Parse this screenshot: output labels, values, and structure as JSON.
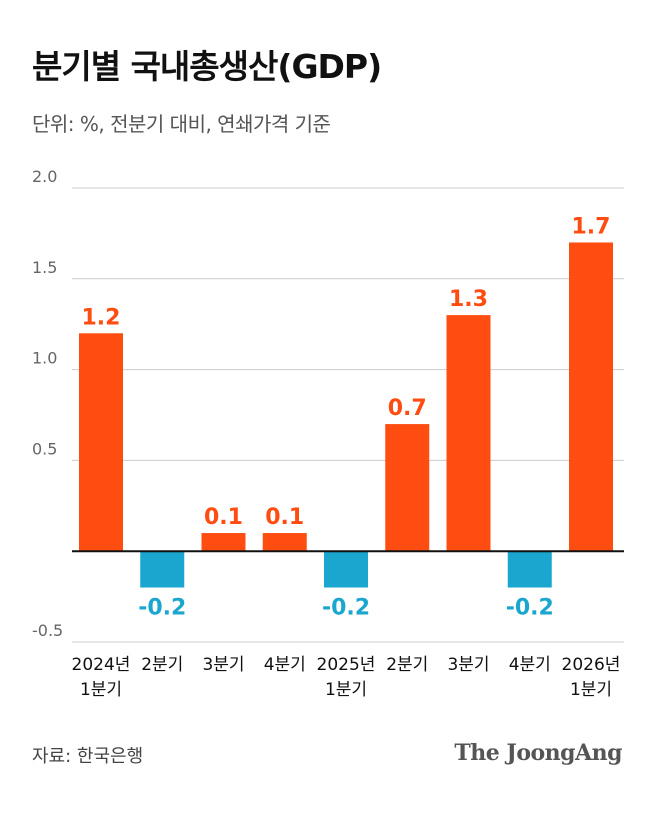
{
  "header": {
    "title": "분기별 국내총생산(GDP)",
    "subtitle": "단위: %, 전분기 대비, 연쇄가격 기준"
  },
  "footer": {
    "source": "자료: 한국은행",
    "brand": "The JoongAng"
  },
  "colors": {
    "positive": "#ff4d12",
    "negative": "#1aa6cf",
    "grid": "#cccccc",
    "zero_line": "#111111",
    "tick": "#666666"
  },
  "chart_data": {
    "type": "bar",
    "title": "분기별 국내총생산(GDP)",
    "subtitle": "단위: %, 전분기 대비, 연쇄가격 기준",
    "xlabel": "",
    "ylabel": "",
    "ylim": [
      -0.5,
      2.0
    ],
    "yticks": [
      "2.0",
      "1.5",
      "1.0",
      "0.5",
      "-0.5"
    ],
    "ytick_values": [
      2.0,
      1.5,
      1.0,
      0.5,
      -0.5
    ],
    "grid": true,
    "categories": [
      [
        "2024년",
        "1분기"
      ],
      [
        "2분기"
      ],
      [
        "3분기"
      ],
      [
        "4분기"
      ],
      [
        "2025년",
        "1분기"
      ],
      [
        "2분기"
      ],
      [
        "3분기"
      ],
      [
        "4분기"
      ],
      [
        "2026년",
        "1분기"
      ]
    ],
    "values": [
      1.2,
      -0.2,
      0.1,
      0.1,
      -0.2,
      0.7,
      1.3,
      -0.2,
      1.7
    ],
    "labels": [
      "1.2",
      "-0.2",
      "0.1",
      "0.1",
      "-0.2",
      "0.7",
      "1.3",
      "-0.2",
      "1.7"
    ]
  }
}
